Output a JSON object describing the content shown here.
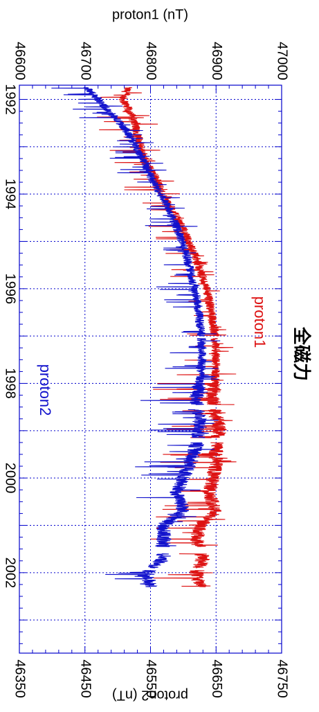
{
  "title": "全磁力",
  "colors": {
    "proton1": "#dd1111",
    "proton2": "#1111cc",
    "grid": "#0000cc",
    "frame": "#0000cc",
    "text": "#000000"
  },
  "chart_data": {
    "type": "line",
    "title": "全磁力",
    "orientation": "rotated 90° clockwise (time runs top to bottom)",
    "x_axis": {
      "label": "",
      "range": [
        1991.7,
        2003.7
      ],
      "ticks": [
        "1992",
        "1994",
        "1996",
        "1998",
        "2000",
        "2002"
      ],
      "tick_values": [
        1992,
        1994,
        1996,
        1998,
        2000,
        2002
      ]
    },
    "y_axis_left": {
      "label": "proton1 (nT)",
      "range": [
        46600,
        47000
      ],
      "ticks": [
        "46600",
        "46700",
        "46800",
        "46900",
        "47000"
      ],
      "tick_values": [
        46600,
        46700,
        46800,
        46900,
        47000
      ]
    },
    "y_axis_right": {
      "label": "proton2 (nT)",
      "range": [
        46350,
        46750
      ],
      "ticks": [
        "46350",
        "46450",
        "46550",
        "46650",
        "46750"
      ],
      "tick_values": [
        46350,
        46450,
        46550,
        46650,
        46750
      ]
    },
    "grid": true,
    "series": [
      {
        "name": "proton1",
        "axis": "left",
        "color": "#dd1111",
        "x": [
          1991.75,
          1992.0,
          1992.3,
          1992.6,
          1993.0,
          1993.3,
          1993.7,
          1994.0,
          1994.3,
          1994.7,
          1995.0,
          1995.3,
          1995.7,
          1996.0,
          1996.3,
          1996.7,
          1997.0,
          1997.3,
          1997.7,
          1998.0,
          1998.3,
          1998.7,
          1999.0,
          1999.3,
          1999.7,
          2000.0,
          2000.3,
          2000.7,
          2001.0,
          2001.3,
          2001.7,
          2002.0,
          2002.3
        ],
        "values": [
          46765,
          46758,
          46770,
          46778,
          46785,
          46792,
          46810,
          46818,
          46832,
          46848,
          46858,
          46868,
          46878,
          46885,
          46890,
          46895,
          46898,
          46900,
          46900,
          46898,
          46895,
          46900,
          46905,
          46900,
          46900,
          46895,
          46890,
          46900,
          46875,
          46870,
          46880,
          46870,
          46875
        ]
      },
      {
        "name": "proton2",
        "axis": "right",
        "color": "#1111cc",
        "x": [
          1991.75,
          1992.0,
          1992.3,
          1992.6,
          1993.0,
          1993.3,
          1993.7,
          1994.0,
          1994.3,
          1994.7,
          1995.0,
          1995.3,
          1995.7,
          1996.0,
          1996.3,
          1996.7,
          1997.0,
          1997.3,
          1997.7,
          1998.0,
          1998.3,
          1998.7,
          1999.0,
          1999.3,
          1999.7,
          2000.0,
          2000.3,
          2000.7,
          2001.0,
          2001.3,
          2001.7,
          2002.0,
          2002.3
        ],
        "values": [
          46452,
          46470,
          46490,
          46510,
          46528,
          46540,
          46553,
          46565,
          46578,
          46590,
          46598,
          46605,
          46612,
          46618,
          46622,
          46625,
          46628,
          46628,
          46628,
          46625,
          46620,
          46625,
          46625,
          46620,
          46610,
          46600,
          46590,
          46600,
          46570,
          46570,
          46570,
          46545,
          46550
        ]
      }
    ],
    "legend": [
      {
        "name": "proton1",
        "placement": "upper-right"
      },
      {
        "name": "proton2",
        "placement": "middle-left"
      }
    ]
  }
}
